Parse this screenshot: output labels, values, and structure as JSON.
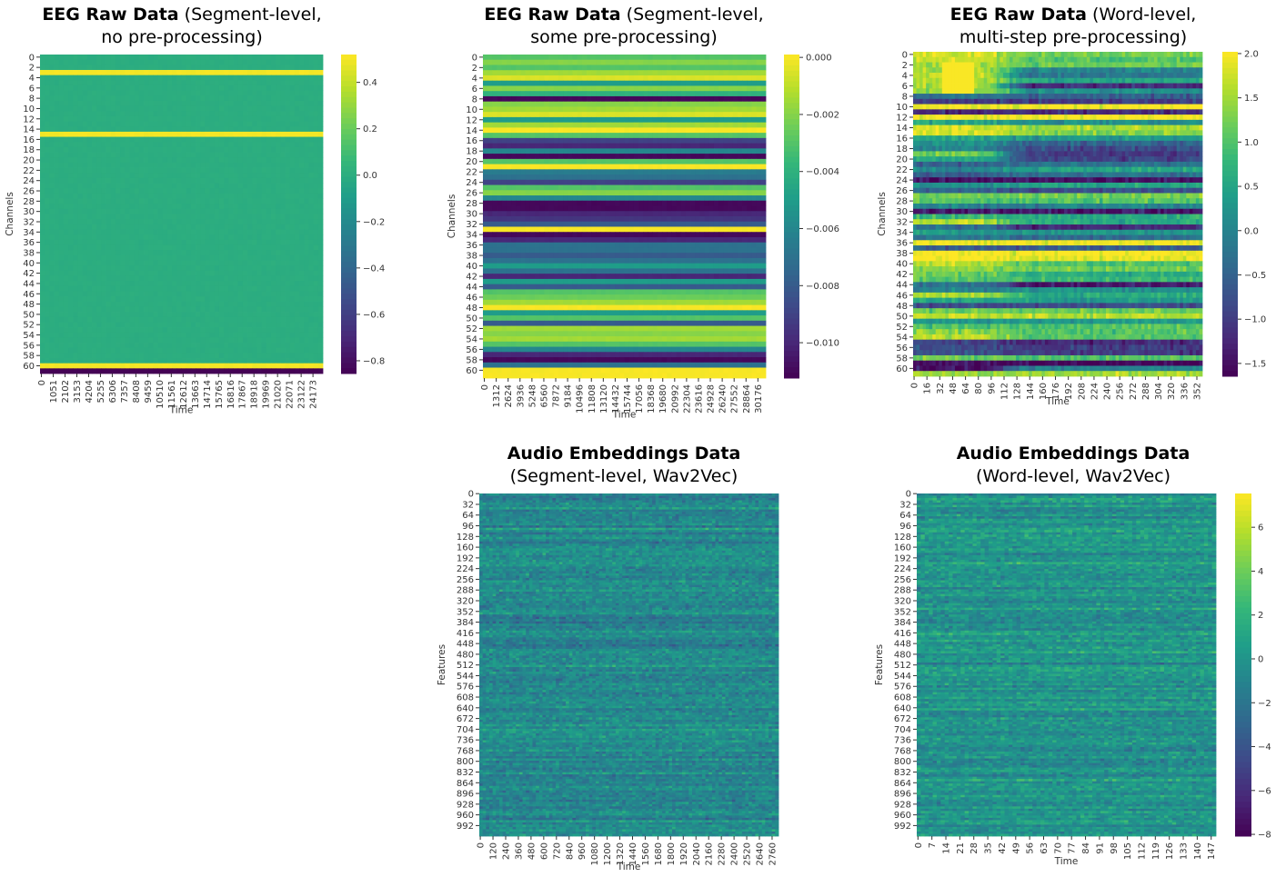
{
  "chart_data": [
    {
      "type": "heatmap",
      "title": "EEG Raw Data",
      "subtitle": [
        "(Segment-level,",
        "no pre-processing)"
      ],
      "xlabel": "Time",
      "ylabel": "Channels",
      "colormap": "viridis",
      "xlim": [
        0,
        25180
      ],
      "xticks": [
        0,
        1051,
        2102,
        3153,
        4204,
        5255,
        6306,
        7357,
        8408,
        9459,
        10510,
        11561,
        12612,
        13663,
        14714,
        15765,
        16816,
        17867,
        18918,
        19969,
        21020,
        22071,
        23122,
        24173
      ],
      "rows": 62,
      "yticks": [
        0,
        2,
        4,
        6,
        8,
        10,
        12,
        14,
        16,
        18,
        20,
        22,
        24,
        26,
        28,
        30,
        32,
        34,
        36,
        38,
        40,
        42,
        44,
        46,
        48,
        50,
        52,
        54,
        56,
        58,
        60
      ],
      "colorbar": {
        "min": -0.855,
        "max": 0.52,
        "ticks": [
          0.4,
          0.2,
          0.0,
          -0.2,
          -0.4,
          -0.6,
          -0.8
        ],
        "tick_labels": [
          "0.4",
          "0.2",
          "0.0",
          "−0.2",
          "−0.4",
          "−0.6",
          "−0.8"
        ]
      },
      "row_values": [
        0.0,
        0.0,
        0.0,
        0.5,
        0.0,
        0.0,
        0.0,
        0.0,
        0.0,
        0.0,
        0.0,
        0.0,
        0.0,
        0.0,
        0.0,
        0.5,
        0.0,
        0.0,
        0.0,
        0.0,
        0.0,
        0.0,
        0.0,
        0.0,
        0.0,
        0.0,
        0.0,
        0.0,
        0.0,
        0.0,
        0.0,
        0.0,
        0.0,
        0.0,
        0.0,
        0.0,
        0.0,
        0.0,
        0.0,
        0.0,
        0.0,
        0.0,
        0.0,
        0.0,
        0.0,
        0.0,
        0.0,
        0.0,
        0.0,
        0.0,
        0.0,
        0.0,
        0.0,
        0.0,
        0.0,
        0.0,
        0.0,
        0.0,
        0.0,
        0.0,
        0.5,
        -0.85
      ]
    },
    {
      "type": "heatmap",
      "title": "EEG Raw Data",
      "subtitle": [
        "(Segment-level,",
        "some pre-processing)"
      ],
      "xlabel": "Time",
      "ylabel": "Channels",
      "colormap": "viridis",
      "xlim": [
        0,
        31200
      ],
      "xticks": [
        0,
        1312,
        2624,
        3936,
        5248,
        6560,
        7872,
        9184,
        10496,
        11808,
        13120,
        14432,
        15744,
        17056,
        18368,
        19680,
        20992,
        22304,
        23616,
        24928,
        26240,
        27552,
        28864,
        30176
      ],
      "rows": 62,
      "yticks": [
        0,
        2,
        4,
        6,
        8,
        10,
        12,
        14,
        16,
        18,
        20,
        22,
        24,
        26,
        28,
        30,
        32,
        34,
        36,
        38,
        40,
        42,
        44,
        46,
        48,
        50,
        52,
        54,
        56,
        58,
        60
      ],
      "colorbar": {
        "min": -0.01124,
        "max": 0.0001,
        "ticks": [
          0.0,
          -0.002,
          -0.004,
          -0.006,
          -0.008,
          -0.01
        ],
        "tick_labels": [
          "0.000",
          "−0.002",
          "−0.004",
          "−0.006",
          "−0.008",
          "−0.010"
        ]
      },
      "row_values": [
        -0.003,
        -0.002,
        -0.003,
        -0.0015,
        -0.0005,
        -0.005,
        -0.002,
        -0.004,
        -0.011,
        -0.002,
        -0.0015,
        -0.0005,
        -0.005,
        -0.0015,
        0,
        -0.003,
        -0.009,
        -0.01,
        -0.006,
        -0.011,
        -0.003,
        0,
        -0.0065,
        -0.007,
        -0.009,
        -0.003,
        -0.002,
        -0.006,
        -0.011,
        -0.011,
        -0.01,
        -0.0095,
        -0.008,
        0,
        -0.011,
        -0.01,
        -0.007,
        -0.007,
        -0.008,
        -0.007,
        -0.005,
        -0.007,
        -0.01,
        -0.005,
        -0.008,
        -0.003,
        -0.0025,
        -0.0015,
        0,
        -0.005,
        -0.003,
        -0.008,
        -0.0015,
        -0.002,
        -0.0015,
        -0.003,
        -0.006,
        -0.01,
        -0.011,
        -0.007,
        0,
        0
      ]
    },
    {
      "type": "heatmap",
      "title": "EEG Raw Data",
      "subtitle": [
        "(Word-level,",
        "multi-step pre-processing)"
      ],
      "xlabel": "Time",
      "ylabel": "Channels",
      "colormap": "viridis",
      "xlim": [
        0,
        360
      ],
      "xticks": [
        0,
        16,
        32,
        48,
        64,
        80,
        96,
        112,
        128,
        144,
        160,
        176,
        192,
        208,
        224,
        240,
        256,
        272,
        288,
        304,
        320,
        336,
        352
      ],
      "rows": 62,
      "yticks": [
        0,
        2,
        4,
        6,
        8,
        10,
        12,
        14,
        16,
        18,
        20,
        22,
        24,
        26,
        28,
        30,
        32,
        34,
        36,
        38,
        40,
        42,
        44,
        46,
        48,
        50,
        52,
        54,
        56,
        58,
        60
      ],
      "colorbar": {
        "min": -1.645,
        "max": 2.02,
        "ticks": [
          2.0,
          1.5,
          1.0,
          0.5,
          0.0,
          -0.5,
          -1.0,
          -1.5
        ],
        "tick_labels": [
          "2.0",
          "1.5",
          "1.0",
          "0.5",
          "0.0",
          "−0.5",
          "−1.0",
          "−1.5"
        ]
      },
      "row_values_early": [
        1.8,
        1.7,
        1.5,
        1.6,
        1.7,
        1.6,
        1.5,
        1.4,
        -0.3,
        -1.0,
        2.0,
        -1.2,
        2.0,
        0.5,
        1.8,
        1.8,
        0.5,
        0.2,
        0.0,
        1.2,
        0.5,
        -0.5,
        0.0,
        -0.5,
        -1.5,
        0.2,
        -0.5,
        1.2,
        1.0,
        0.0,
        -1.4,
        0.8,
        1.6,
        -0.3,
        0.3,
        -0.2,
        2.0,
        -0.6,
        2.0,
        2.0,
        1.6,
        1.4,
        1.2,
        1.0,
        -0.3,
        0.0,
        1.6,
        0.5,
        -0.8,
        1.2,
        1.7,
        0.3,
        1.0,
        1.4,
        1.6,
        -1.0,
        -0.8,
        -0.8,
        1.2,
        -1.5,
        -1.5,
        1.5
      ],
      "row_values_late": [
        1.2,
        1.0,
        1.2,
        0.0,
        -0.2,
        0.5,
        -1.2,
        0.2,
        -0.5,
        -1.0,
        2.0,
        -1.2,
        2.0,
        0.2,
        1.5,
        1.3,
        0.3,
        -0.5,
        -0.8,
        -1.0,
        -0.9,
        -0.3,
        0.5,
        -0.3,
        -1.5,
        0.5,
        -0.8,
        1.2,
        1.0,
        0.0,
        -1.4,
        0.6,
        0.6,
        -1.2,
        0.3,
        -0.4,
        2.0,
        -0.6,
        2.0,
        1.9,
        1.0,
        1.2,
        0.6,
        0.8,
        -1.4,
        0.2,
        0.6,
        0.3,
        -0.8,
        1.2,
        1.6,
        0.3,
        1.0,
        1.0,
        1.0,
        -1.2,
        -1.0,
        -1.0,
        1.0,
        -1.6,
        0.0,
        1.5
      ]
    },
    {
      "type": "heatmap",
      "title": "Audio Embeddings Data",
      "subtitle": [
        "(Segment-level, Wav2Vec)"
      ],
      "xlabel": "Time",
      "ylabel": "Features",
      "colormap": "viridis",
      "xlim": [
        0,
        2830
      ],
      "xticks": [
        0,
        120,
        240,
        360,
        480,
        600,
        720,
        840,
        960,
        1080,
        1200,
        1320,
        1440,
        1560,
        1680,
        1800,
        1920,
        2040,
        2160,
        2280,
        2400,
        2520,
        2640,
        2760
      ],
      "rows": 1024,
      "yticks": [
        0,
        32,
        64,
        96,
        128,
        160,
        192,
        224,
        256,
        288,
        320,
        352,
        384,
        416,
        448,
        480,
        512,
        544,
        576,
        608,
        640,
        672,
        704,
        736,
        768,
        800,
        832,
        864,
        896,
        928,
        960,
        992
      ],
      "colorbar": null,
      "mean_value": 0.0,
      "value_spread": 1.2
    },
    {
      "type": "heatmap",
      "title": "Audio Embeddings Data",
      "subtitle": [
        "(Word-level, Wav2Vec)"
      ],
      "xlabel": "Time",
      "ylabel": "Features",
      "colormap": "viridis",
      "xlim": [
        0,
        150
      ],
      "xticks": [
        0,
        7,
        14,
        21,
        28,
        35,
        42,
        49,
        56,
        63,
        70,
        77,
        84,
        91,
        98,
        105,
        112,
        119,
        126,
        133,
        140,
        147
      ],
      "rows": 1024,
      "yticks": [
        0,
        32,
        64,
        96,
        128,
        160,
        192,
        224,
        256,
        288,
        320,
        352,
        384,
        416,
        448,
        480,
        512,
        544,
        576,
        608,
        640,
        672,
        704,
        736,
        768,
        800,
        832,
        864,
        896,
        928,
        960,
        992
      ],
      "colorbar": {
        "min": -8.08,
        "max": 7.54,
        "ticks": [
          6,
          4,
          2,
          0,
          -2,
          -4,
          -6,
          -8
        ],
        "tick_labels": [
          "6",
          "4",
          "2",
          "0",
          "−2",
          "−4",
          "−6",
          "−8"
        ]
      },
      "mean_value": 0.0,
      "value_spread": 2.2
    }
  ]
}
